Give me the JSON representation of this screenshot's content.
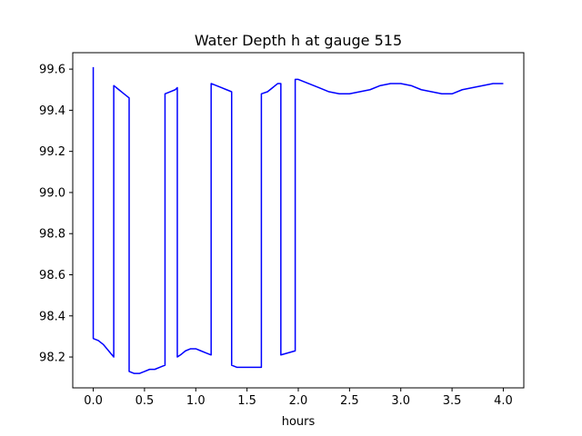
{
  "chart_data": {
    "type": "line",
    "title": "Water Depth h at gauge 515",
    "xlabel": "hours",
    "ylabel": "",
    "xlim": [
      -0.2,
      4.2
    ],
    "ylim": [
      98.05,
      99.68
    ],
    "xticks": [
      0.0,
      0.5,
      1.0,
      1.5,
      2.0,
      2.5,
      3.0,
      3.5,
      4.0
    ],
    "xtick_labels": [
      "0.0",
      "0.5",
      "1.0",
      "1.5",
      "2.0",
      "2.5",
      "3.0",
      "3.5",
      "4.0"
    ],
    "yticks": [
      98.2,
      98.4,
      98.6,
      98.8,
      99.0,
      99.2,
      99.4,
      99.6
    ],
    "ytick_labels": [
      "98.2",
      "98.4",
      "98.6",
      "98.8",
      "99.0",
      "99.2",
      "99.4",
      "99.6"
    ],
    "grid": false,
    "series": [
      {
        "color": "#0000ff",
        "x": [
          0.0,
          0.0,
          0.05,
          0.1,
          0.15,
          0.2,
          0.2,
          0.25,
          0.3,
          0.35,
          0.35,
          0.4,
          0.45,
          0.5,
          0.55,
          0.6,
          0.65,
          0.7,
          0.7,
          0.75,
          0.8,
          0.82,
          0.82,
          0.85,
          0.9,
          0.95,
          1.0,
          1.05,
          1.1,
          1.15,
          1.15,
          1.2,
          1.25,
          1.3,
          1.35,
          1.35,
          1.4,
          1.45,
          1.5,
          1.55,
          1.6,
          1.64,
          1.64,
          1.7,
          1.75,
          1.8,
          1.83,
          1.83,
          1.9,
          1.97,
          1.97,
          2.0,
          2.1,
          2.2,
          2.3,
          2.4,
          2.5,
          2.6,
          2.7,
          2.8,
          2.9,
          3.0,
          3.1,
          3.2,
          3.3,
          3.4,
          3.5,
          3.6,
          3.7,
          3.8,
          3.9,
          4.0
        ],
        "y": [
          99.61,
          98.29,
          98.28,
          98.26,
          98.23,
          98.2,
          99.52,
          99.5,
          99.48,
          99.46,
          98.13,
          98.12,
          98.12,
          98.13,
          98.14,
          98.14,
          98.15,
          98.16,
          99.48,
          99.49,
          99.5,
          99.51,
          98.2,
          98.21,
          98.23,
          98.24,
          98.24,
          98.23,
          98.22,
          98.21,
          99.53,
          99.52,
          99.51,
          99.5,
          99.49,
          98.16,
          98.15,
          98.15,
          98.15,
          98.15,
          98.15,
          98.15,
          99.48,
          99.49,
          99.51,
          99.53,
          99.53,
          98.21,
          98.22,
          98.23,
          99.55,
          99.55,
          99.53,
          99.51,
          99.49,
          99.48,
          99.48,
          99.49,
          99.5,
          99.52,
          99.53,
          99.53,
          99.52,
          99.5,
          99.49,
          99.48,
          99.48,
          99.5,
          99.51,
          99.52,
          99.53,
          99.53
        ]
      }
    ]
  }
}
